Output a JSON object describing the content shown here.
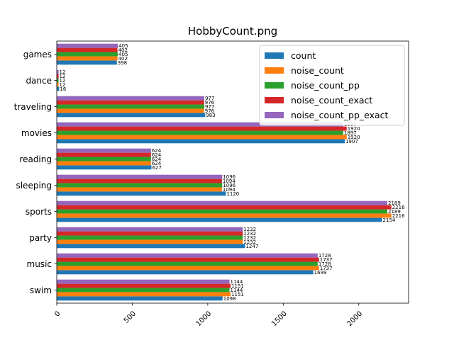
{
  "chart_data": {
    "type": "bar",
    "orientation": "horizontal",
    "title": "HobbyCount.png",
    "xlabel": "",
    "ylabel": "",
    "xlim": [
      0,
      2330
    ],
    "xticks": [
      0,
      500,
      1000,
      1500,
      2000
    ],
    "grid": false,
    "legend_position": "top-right",
    "categories": [
      "swim",
      "music",
      "party",
      "sports",
      "sleeping",
      "reading",
      "movies",
      "traveling",
      "dance",
      "games"
    ],
    "series": [
      {
        "name": "count",
        "color": "#1f77b4",
        "values": [
          1098,
          1699,
          1247,
          2154,
          1120,
          627,
          1907,
          983,
          16,
          398
        ]
      },
      {
        "name": "noise_count",
        "color": "#ff7f0e",
        "values": [
          1151,
          1737,
          1232,
          2216,
          1094,
          624,
          1920,
          976,
          12,
          402
        ]
      },
      {
        "name": "noise_count_pp",
        "color": "#2ca02c",
        "values": [
          1144,
          1728,
          1232,
          2189,
          1096,
          624,
          1897,
          977,
          12,
          405
        ]
      },
      {
        "name": "noise_count_exact",
        "color": "#d62728",
        "values": [
          1151,
          1737,
          1232,
          2216,
          1094,
          624,
          1920,
          976,
          12,
          402
        ]
      },
      {
        "name": "noise_count_pp_exact",
        "color": "#9467bd",
        "values": [
          1144,
          1728,
          1232,
          2189,
          1096,
          624,
          1897,
          977,
          12,
          405
        ]
      }
    ]
  }
}
